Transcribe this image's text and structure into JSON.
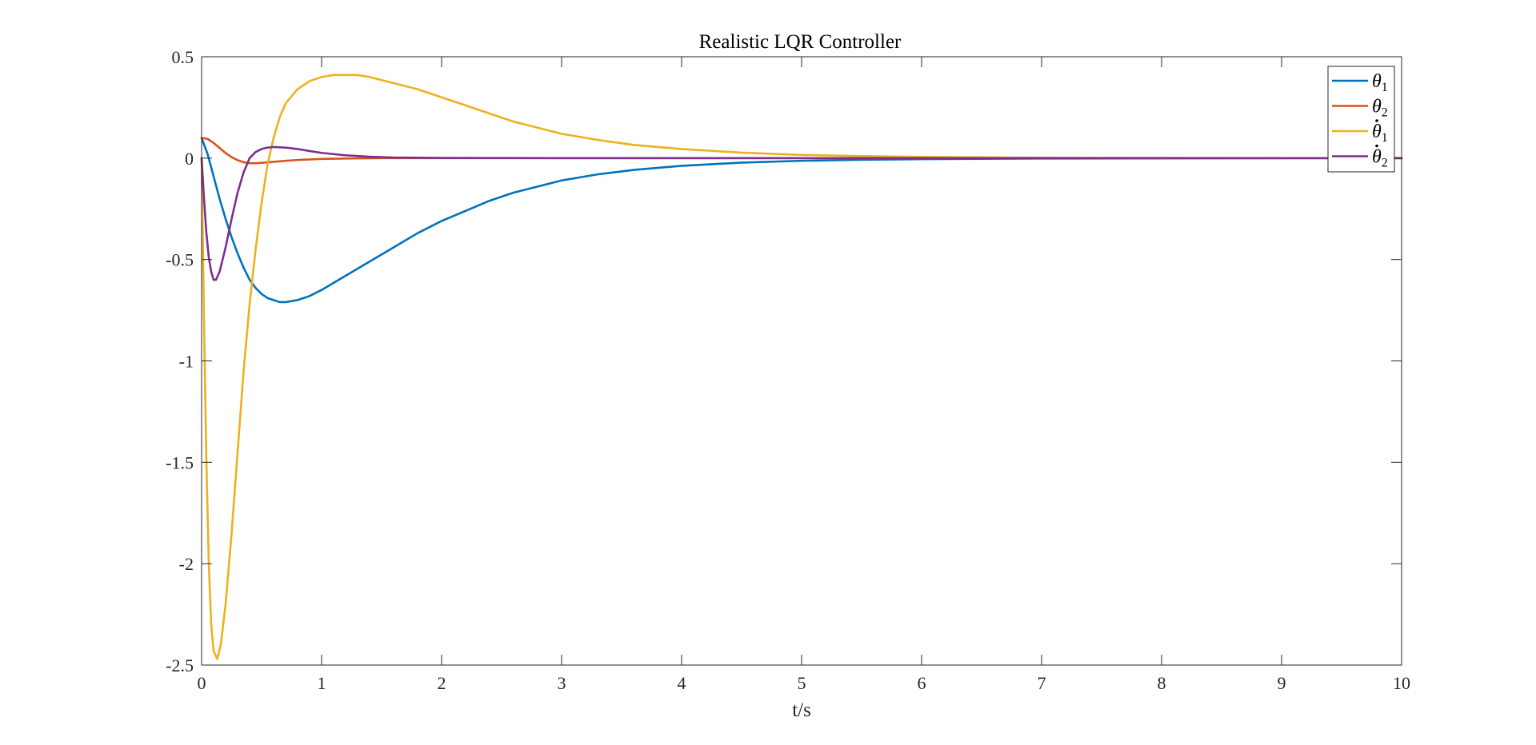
{
  "chart_data": {
    "type": "line",
    "title": "Realistic LQR Controller",
    "xlabel": "t/s",
    "ylabel": "",
    "xlim": [
      0,
      10
    ],
    "ylim": [
      -2.5,
      0.5
    ],
    "xticks": [
      0,
      1,
      2,
      3,
      4,
      5,
      6,
      7,
      8,
      9,
      10
    ],
    "yticks": [
      0.5,
      0,
      -0.5,
      -1,
      -1.5,
      -2,
      -2.5
    ],
    "xtick_labels": [
      "0",
      "1",
      "2",
      "3",
      "4",
      "5",
      "6",
      "7",
      "8",
      "9",
      "10"
    ],
    "ytick_labels": [
      "0.5",
      "0",
      "-0.5",
      "-1",
      "-1.5",
      "-2",
      "-2.5"
    ],
    "grid": false,
    "legend_position": "top-right",
    "series": [
      {
        "name": "θ1",
        "color": "#0072BD",
        "points": [
          [
            0,
            0.1
          ],
          [
            0.05,
            0.02
          ],
          [
            0.1,
            -0.09
          ],
          [
            0.15,
            -0.2
          ],
          [
            0.2,
            -0.3
          ],
          [
            0.25,
            -0.39
          ],
          [
            0.3,
            -0.47
          ],
          [
            0.35,
            -0.54
          ],
          [
            0.4,
            -0.6
          ],
          [
            0.45,
            -0.64
          ],
          [
            0.5,
            -0.67
          ],
          [
            0.55,
            -0.69
          ],
          [
            0.6,
            -0.7
          ],
          [
            0.65,
            -0.71
          ],
          [
            0.7,
            -0.71
          ],
          [
            0.8,
            -0.7
          ],
          [
            0.9,
            -0.68
          ],
          [
            1.0,
            -0.65
          ],
          [
            1.2,
            -0.58
          ],
          [
            1.4,
            -0.51
          ],
          [
            1.6,
            -0.44
          ],
          [
            1.8,
            -0.37
          ],
          [
            2.0,
            -0.31
          ],
          [
            2.2,
            -0.26
          ],
          [
            2.4,
            -0.21
          ],
          [
            2.6,
            -0.17
          ],
          [
            2.8,
            -0.14
          ],
          [
            3.0,
            -0.11
          ],
          [
            3.3,
            -0.08
          ],
          [
            3.6,
            -0.058
          ],
          [
            4.0,
            -0.038
          ],
          [
            4.5,
            -0.022
          ],
          [
            5.0,
            -0.013
          ],
          [
            5.5,
            -0.008
          ],
          [
            6.0,
            -0.005
          ],
          [
            7.0,
            -0.002
          ],
          [
            8.0,
            -0.001
          ],
          [
            9.0,
            0
          ],
          [
            10.0,
            0
          ]
        ]
      },
      {
        "name": "θ2",
        "color": "#D95319",
        "points": [
          [
            0,
            0.1
          ],
          [
            0.05,
            0.095
          ],
          [
            0.1,
            0.075
          ],
          [
            0.15,
            0.05
          ],
          [
            0.2,
            0.025
          ],
          [
            0.25,
            0.005
          ],
          [
            0.3,
            -0.01
          ],
          [
            0.35,
            -0.02
          ],
          [
            0.4,
            -0.025
          ],
          [
            0.45,
            -0.025
          ],
          [
            0.5,
            -0.023
          ],
          [
            0.6,
            -0.018
          ],
          [
            0.7,
            -0.013
          ],
          [
            0.8,
            -0.009
          ],
          [
            1.0,
            -0.004
          ],
          [
            1.2,
            -0.002
          ],
          [
            1.5,
            0
          ],
          [
            2.0,
            0
          ],
          [
            3.0,
            0
          ],
          [
            5.0,
            0
          ],
          [
            10.0,
            0
          ]
        ]
      },
      {
        "name": "θ̇1",
        "color": "#EDB120",
        "points": [
          [
            0,
            0
          ],
          [
            0.02,
            -0.8
          ],
          [
            0.04,
            -1.5
          ],
          [
            0.06,
            -2.0
          ],
          [
            0.08,
            -2.3
          ],
          [
            0.1,
            -2.43
          ],
          [
            0.13,
            -2.47
          ],
          [
            0.16,
            -2.4
          ],
          [
            0.2,
            -2.2
          ],
          [
            0.25,
            -1.85
          ],
          [
            0.3,
            -1.45
          ],
          [
            0.35,
            -1.05
          ],
          [
            0.4,
            -0.72
          ],
          [
            0.45,
            -0.45
          ],
          [
            0.5,
            -0.22
          ],
          [
            0.55,
            -0.03
          ],
          [
            0.6,
            0.1
          ],
          [
            0.65,
            0.2
          ],
          [
            0.7,
            0.27
          ],
          [
            0.8,
            0.34
          ],
          [
            0.9,
            0.38
          ],
          [
            1.0,
            0.4
          ],
          [
            1.1,
            0.41
          ],
          [
            1.2,
            0.41
          ],
          [
            1.3,
            0.41
          ],
          [
            1.4,
            0.4
          ],
          [
            1.6,
            0.37
          ],
          [
            1.8,
            0.34
          ],
          [
            2.0,
            0.3
          ],
          [
            2.2,
            0.26
          ],
          [
            2.4,
            0.22
          ],
          [
            2.6,
            0.18
          ],
          [
            2.8,
            0.15
          ],
          [
            3.0,
            0.12
          ],
          [
            3.3,
            0.09
          ],
          [
            3.6,
            0.065
          ],
          [
            4.0,
            0.045
          ],
          [
            4.5,
            0.027
          ],
          [
            5.0,
            0.016
          ],
          [
            5.5,
            0.01
          ],
          [
            6.0,
            0.006
          ],
          [
            7.0,
            0.002
          ],
          [
            8.0,
            0.001
          ],
          [
            9.0,
            0
          ],
          [
            10.0,
            0
          ]
        ]
      },
      {
        "name": "θ̇2",
        "color": "#7E2F8E",
        "points": [
          [
            0,
            0
          ],
          [
            0.02,
            -0.2
          ],
          [
            0.04,
            -0.37
          ],
          [
            0.06,
            -0.49
          ],
          [
            0.08,
            -0.56
          ],
          [
            0.1,
            -0.6
          ],
          [
            0.12,
            -0.6
          ],
          [
            0.15,
            -0.56
          ],
          [
            0.2,
            -0.44
          ],
          [
            0.25,
            -0.3
          ],
          [
            0.3,
            -0.17
          ],
          [
            0.35,
            -0.07
          ],
          [
            0.4,
            0
          ],
          [
            0.45,
            0.03
          ],
          [
            0.5,
            0.045
          ],
          [
            0.55,
            0.052
          ],
          [
            0.6,
            0.055
          ],
          [
            0.7,
            0.052
          ],
          [
            0.8,
            0.045
          ],
          [
            0.9,
            0.035
          ],
          [
            1.0,
            0.026
          ],
          [
            1.2,
            0.014
          ],
          [
            1.4,
            0.007
          ],
          [
            1.6,
            0.003
          ],
          [
            2.0,
            0.001
          ],
          [
            3.0,
            0
          ],
          [
            5.0,
            0
          ],
          [
            10.0,
            0
          ]
        ]
      }
    ]
  },
  "legend": [
    {
      "symbol": "θ",
      "dot": false,
      "sub": "1"
    },
    {
      "symbol": "θ",
      "dot": false,
      "sub": "2"
    },
    {
      "symbol": "θ",
      "dot": true,
      "sub": "1"
    },
    {
      "symbol": "θ",
      "dot": true,
      "sub": "2"
    }
  ]
}
